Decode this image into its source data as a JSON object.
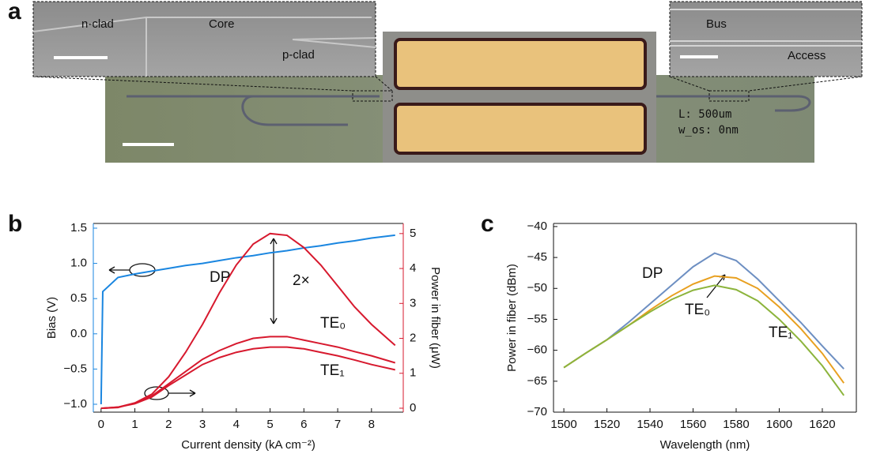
{
  "figure_a": {
    "panel_label": "a",
    "inset_left": {
      "labels": [
        "n-clad",
        "Core",
        "p-clad"
      ]
    },
    "inset_right": {
      "labels": [
        "Bus",
        "Access"
      ]
    },
    "chip_text": [
      "L: 500um",
      "w_os: 0nm"
    ]
  },
  "chart_data": [
    {
      "type": "line",
      "panel_label": "b",
      "xlabel": "Current density (kA cm⁻²)",
      "ylabel": "Bias (V)",
      "y2label": "Power in fiber (μW)",
      "x": [
        0,
        0.05,
        0.5,
        1,
        1.5,
        2,
        2.5,
        3,
        3.5,
        4,
        4.5,
        5,
        5.5,
        6,
        6.5,
        7,
        7.5,
        8,
        8.7
      ],
      "series": [
        {
          "color": "#1a86e0",
          "values": [
            -1.0,
            0.6,
            0.8,
            0.85,
            0.89,
            0.93,
            0.97,
            1.0,
            1.04,
            1.08,
            1.11,
            1.15,
            1.18,
            1.22,
            1.25,
            1.29,
            1.32,
            1.36,
            1.4
          ]
        },
        {
          "name": "DP",
          "color": "#d7192e",
          "axis": "y2",
          "values": [
            0,
            0,
            0.02,
            0.15,
            0.4,
            0.9,
            1.6,
            2.4,
            3.3,
            4.1,
            4.7,
            5.0,
            4.95,
            4.6,
            4.1,
            3.5,
            2.9,
            2.4,
            1.8
          ]
        },
        {
          "name": "TE₀",
          "color": "#d7192e",
          "axis": "y2",
          "values": [
            0,
            0,
            0.03,
            0.15,
            0.35,
            0.7,
            1.05,
            1.4,
            1.65,
            1.85,
            2.0,
            2.05,
            2.05,
            1.95,
            1.85,
            1.75,
            1.62,
            1.5,
            1.3
          ]
        },
        {
          "name": "TE₁",
          "color": "#d7192e",
          "axis": "y2",
          "values": [
            0,
            0,
            0.03,
            0.13,
            0.32,
            0.65,
            0.95,
            1.25,
            1.45,
            1.6,
            1.7,
            1.75,
            1.75,
            1.7,
            1.6,
            1.5,
            1.38,
            1.25,
            1.1
          ]
        }
      ],
      "annotations": [
        "2×"
      ],
      "xlim": [
        -0.23,
        8.94
      ],
      "xticks": [
        0,
        1,
        2,
        3,
        4,
        5,
        6,
        7,
        8
      ],
      "ylim": [
        -1.112,
        1.567
      ],
      "yticks": [
        {
          "value": -1,
          "label": "−1.0"
        },
        {
          "value": -0.5,
          "label": "−0.5"
        },
        {
          "value": 0,
          "label": "0.0"
        },
        {
          "value": 0.5,
          "label": "0.5"
        },
        {
          "value": 1,
          "label": "1.0"
        },
        1.5
      ],
      "y2lim": [
        -0.113,
        5.29
      ],
      "y2ticks": [
        0,
        1,
        2,
        3,
        4,
        5
      ]
    },
    {
      "type": "line",
      "panel_label": "c",
      "xlabel": "Wavelength (nm)",
      "ylabel": "Power in fiber (dBm)",
      "x": [
        1500,
        1510,
        1520,
        1530,
        1540,
        1550,
        1560,
        1570,
        1580,
        1590,
        1600,
        1610,
        1620,
        1630
      ],
      "series": [
        {
          "name": "DP",
          "color": "#6d8fc2",
          "values": [
            -62.8,
            -60.5,
            -58.3,
            -55.5,
            -52.5,
            -49.5,
            -46.5,
            -44.3,
            -45.5,
            -48.5,
            -52,
            -55.5,
            -59.3,
            -63
          ]
        },
        {
          "name": "TE₀",
          "color": "#e8a020",
          "values": [
            -62.8,
            -60.5,
            -58.3,
            -56,
            -53.5,
            -51.2,
            -49.3,
            -48,
            -48.3,
            -50,
            -53,
            -56.5,
            -60.5,
            -65.3
          ]
        },
        {
          "name": "TE₁",
          "color": "#8cb43c",
          "values": [
            -62.8,
            -60.5,
            -58.3,
            -56,
            -53.8,
            -51.8,
            -50.3,
            -49.5,
            -50.2,
            -52,
            -55,
            -58.5,
            -62.5,
            -67.3
          ]
        }
      ],
      "xlim": [
        1495.2,
        1635.8
      ],
      "xticks": [
        1500,
        1520,
        1540,
        1560,
        1580,
        1600,
        1620
      ],
      "ylim": [
        -70,
        -39.5
      ],
      "yticks": [
        {
          "value": -70,
          "label": "−70"
        },
        {
          "value": -65,
          "label": "−65"
        },
        {
          "value": -60,
          "label": "−60"
        },
        {
          "value": -55,
          "label": "−55"
        },
        {
          "value": -50,
          "label": "−50"
        },
        {
          "value": -45,
          "label": "−45"
        },
        {
          "value": -40,
          "label": "−40"
        }
      ]
    }
  ]
}
